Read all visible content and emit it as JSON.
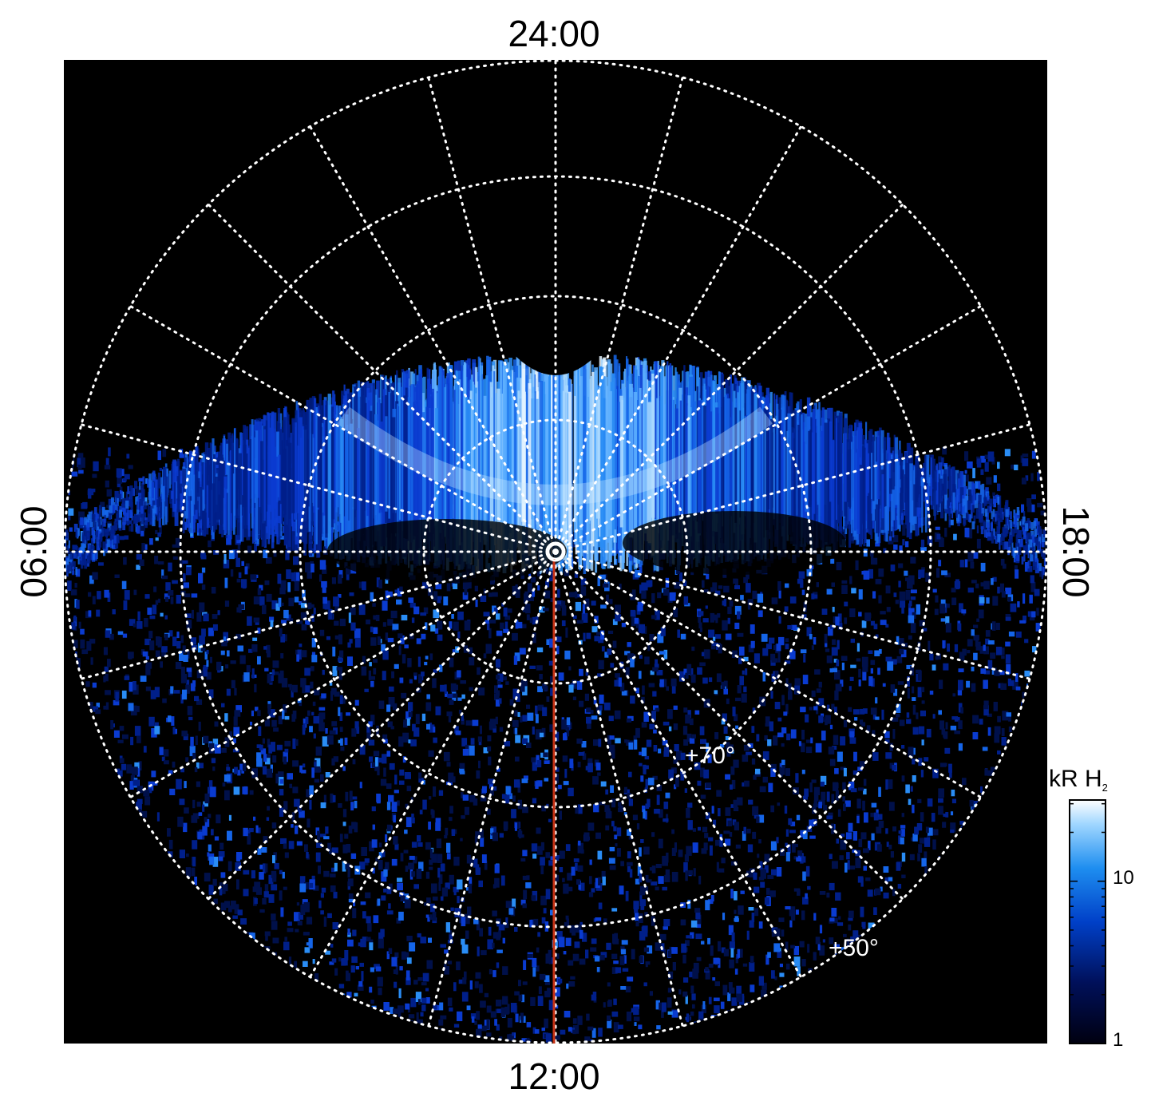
{
  "figure": {
    "local_time_labels": {
      "top": "24:00",
      "bottom": "12:00",
      "left": "06:00",
      "right": "18:00"
    },
    "latitude_labels": [
      "+70°",
      "+50°"
    ],
    "colorbar": {
      "title_main": "kR H",
      "title_sub": "2",
      "tick_labels": [
        "1",
        "10"
      ],
      "scale": "log",
      "colors": [
        "#000010",
        "#00105a",
        "#0040c8",
        "#1e8ef0",
        "#9fd6ff",
        "#ffffff"
      ]
    },
    "colors": {
      "background": "#000000",
      "grid": "#ffffff",
      "meridian_line": "#c83214"
    },
    "icons": [
      "pole-marker-icon"
    ]
  }
}
